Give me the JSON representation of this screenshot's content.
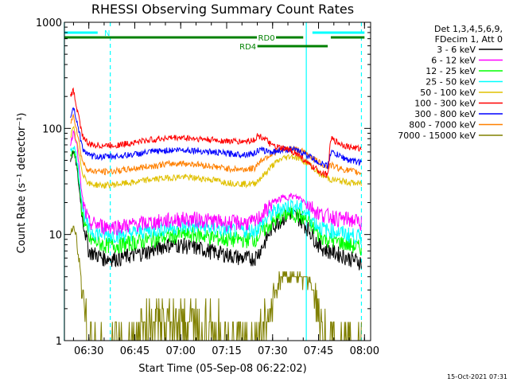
{
  "chart_data": {
    "type": "line",
    "title": "RHESSI Observing Summary Count Rates",
    "xlabel": "Start Time (05-Sep-08 06:22:02)",
    "ylabel": "Count Rate (s⁻¹ detector⁻¹)",
    "y_scale": "log",
    "ylim": [
      1,
      1000
    ],
    "xlim": [
      "06:22:02",
      "08:02:00"
    ],
    "x_ticks": [
      "06:30",
      "06:45",
      "07:00",
      "07:15",
      "07:30",
      "07:45",
      "08:00"
    ],
    "y_ticks": [
      "1",
      "10",
      "100",
      "1000"
    ],
    "grid": false,
    "legend_position": "right",
    "legend_header": [
      "Det 1,3,4,5,6,9,",
      "FDecim 1, Att 0"
    ],
    "footer_date": "15-Oct-2021 07:31",
    "flag_bands": [
      {
        "label": "N",
        "color": "#00ffff",
        "ranges": [
          [
            "06:22",
            "06:37"
          ],
          [
            "07:43",
            "08:00"
          ]
        ]
      },
      {
        "label": "RD0",
        "color": "#008000",
        "ranges": [
          [
            "06:22",
            "07:40"
          ],
          [
            "07:49",
            "08:00"
          ]
        ]
      },
      {
        "label": "RD4",
        "color": "#008000",
        "ranges": [
          [
            "07:24",
            "07:48"
          ]
        ]
      }
    ],
    "vertical_markers": [
      {
        "color": "#00ffff",
        "style": "solid",
        "x": "06:22"
      },
      {
        "color": "#00ffff",
        "style": "dashed",
        "x": "06:37"
      },
      {
        "color": "#00ffff",
        "style": "solid",
        "x": "07:41"
      },
      {
        "color": "#00ffff",
        "style": "dashed",
        "x": "07:59"
      }
    ],
    "x": [
      "06:24",
      "06:25",
      "06:26",
      "06:28",
      "06:30",
      "06:35",
      "06:40",
      "06:45",
      "06:50",
      "06:55",
      "07:00",
      "07:05",
      "07:10",
      "07:15",
      "07:20",
      "07:24",
      "07:25",
      "07:27",
      "07:30",
      "07:33",
      "07:36",
      "07:39",
      "07:42",
      "07:45",
      "07:48",
      "07:49",
      "07:52",
      "07:55",
      "07:59"
    ],
    "series": [
      {
        "name": "3 - 6 keV",
        "color": "#000000",
        "values": [
          50,
          62,
          45,
          14,
          7,
          6,
          6,
          6.5,
          7,
          8,
          8,
          7.5,
          7,
          6.5,
          6,
          6,
          6.5,
          8,
          12,
          14,
          16,
          14,
          11,
          8,
          7,
          7,
          6.5,
          6,
          5.5
        ]
      },
      {
        "name": "6 - 12 keV",
        "color": "#ff00ff",
        "values": [
          70,
          95,
          75,
          20,
          13,
          12,
          12,
          12.5,
          13,
          13.5,
          14,
          14,
          13.5,
          13,
          13,
          13,
          14,
          16,
          20,
          22,
          23,
          22,
          19,
          16,
          15,
          15,
          14,
          14,
          13
        ]
      },
      {
        "name": "12 - 25 keV",
        "color": "#00ff00",
        "values": [
          55,
          62,
          50,
          15,
          9,
          8,
          8,
          8.5,
          9,
          9.5,
          10,
          10,
          9.5,
          9,
          9,
          9,
          9.5,
          11,
          13,
          15,
          16,
          15,
          13,
          10,
          9,
          9,
          8.5,
          8,
          7.5
        ]
      },
      {
        "name": "25 - 50 keV",
        "color": "#00ffff",
        "values": [
          60,
          70,
          55,
          18,
          11,
          10,
          10,
          10.5,
          11,
          11.5,
          12,
          12,
          11.5,
          11,
          11,
          11,
          11.5,
          13,
          16,
          18,
          19,
          18,
          15,
          12,
          11,
          11,
          10.5,
          10,
          9.5
        ]
      },
      {
        "name": "50 - 100 keV",
        "color": "#e0c000",
        "values": [
          85,
          100,
          75,
          38,
          30,
          29,
          30,
          31,
          33,
          34,
          35,
          34,
          33,
          31,
          30,
          30,
          32,
          36,
          45,
          52,
          55,
          52,
          46,
          38,
          34,
          33,
          32,
          31,
          30
        ]
      },
      {
        "name": "100 - 300 keV",
        "color": "#ff0000",
        "values": [
          200,
          230,
          160,
          85,
          70,
          69,
          70,
          74,
          78,
          81,
          82,
          80,
          78,
          76,
          75,
          78,
          85,
          82,
          68,
          65,
          62,
          55,
          45,
          40,
          36,
          80,
          72,
          67,
          64
        ]
      },
      {
        "name": "300 - 800 keV",
        "color": "#0000ff",
        "values": [
          130,
          160,
          120,
          65,
          55,
          54,
          55,
          57,
          60,
          62,
          63,
          62,
          60,
          58,
          57,
          58,
          62,
          62,
          60,
          63,
          64,
          60,
          55,
          48,
          44,
          60,
          55,
          50,
          48
        ]
      },
      {
        "name": "800 - 7000 keV",
        "color": "#ff8000",
        "values": [
          110,
          135,
          100,
          48,
          40,
          39,
          40,
          42,
          44,
          46,
          47,
          46,
          44,
          42,
          41,
          42,
          46,
          52,
          58,
          63,
          65,
          62,
          56,
          48,
          43,
          45,
          42,
          40,
          38
        ]
      },
      {
        "name": "7000 - 15000 keV",
        "color": "#808000",
        "values": [
          10,
          12,
          9,
          3,
          1,
          1,
          1,
          1,
          1.5,
          1.6,
          1.5,
          1.5,
          1.2,
          1,
          1,
          1,
          1,
          1.3,
          2.5,
          3.8,
          4.2,
          4.0,
          3.5,
          2.0,
          1,
          1,
          1,
          1,
          1
        ]
      }
    ]
  }
}
